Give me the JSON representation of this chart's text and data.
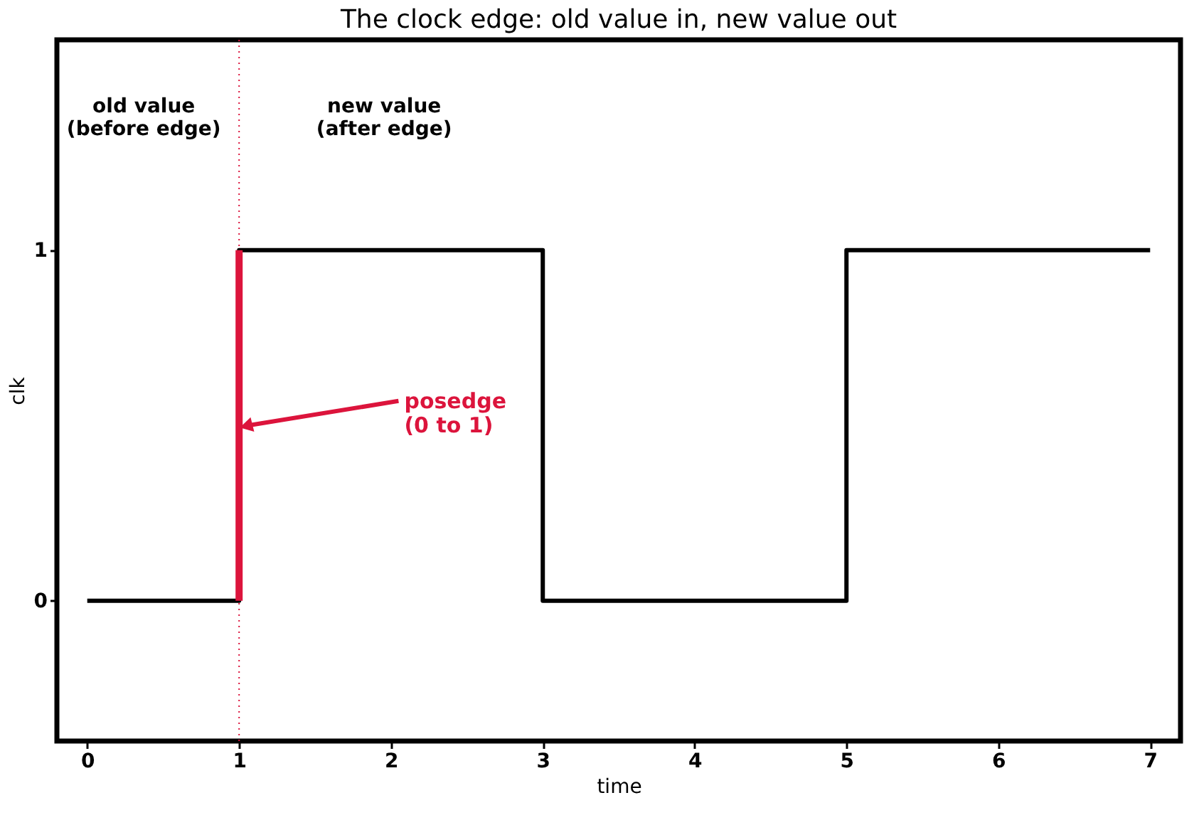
{
  "chart_data": {
    "type": "step",
    "title": "The clock edge: old value in, new value out",
    "xlabel": "time",
    "ylabel": "clk",
    "x": [
      0,
      1,
      3,
      5,
      7
    ],
    "series": [
      {
        "color": "#000000",
        "values": [
          0,
          1,
          0,
          1,
          1
        ]
      },
      {
        "type": "line",
        "color": "#dc143c",
        "x": [
          1,
          1
        ],
        "values": [
          0,
          1
        ]
      }
    ],
    "xlim": [
      -0.2,
      7.2
    ],
    "ylim": [
      -0.4,
      1.6
    ],
    "xticks": [
      0,
      1,
      2,
      3,
      4,
      5,
      6,
      7
    ],
    "yticks": [
      0,
      1
    ],
    "grid": false,
    "ref_lines": [
      {
        "axis": "x",
        "value": 1,
        "color": "#dc143c",
        "line_style": "dotted"
      }
    ],
    "annotations": [
      "old value\n(before edge)",
      "new value\n(after edge)",
      {
        "text": "posedge\n(0 to 1)",
        "x": 1,
        "y": 0.5
      }
    ]
  }
}
